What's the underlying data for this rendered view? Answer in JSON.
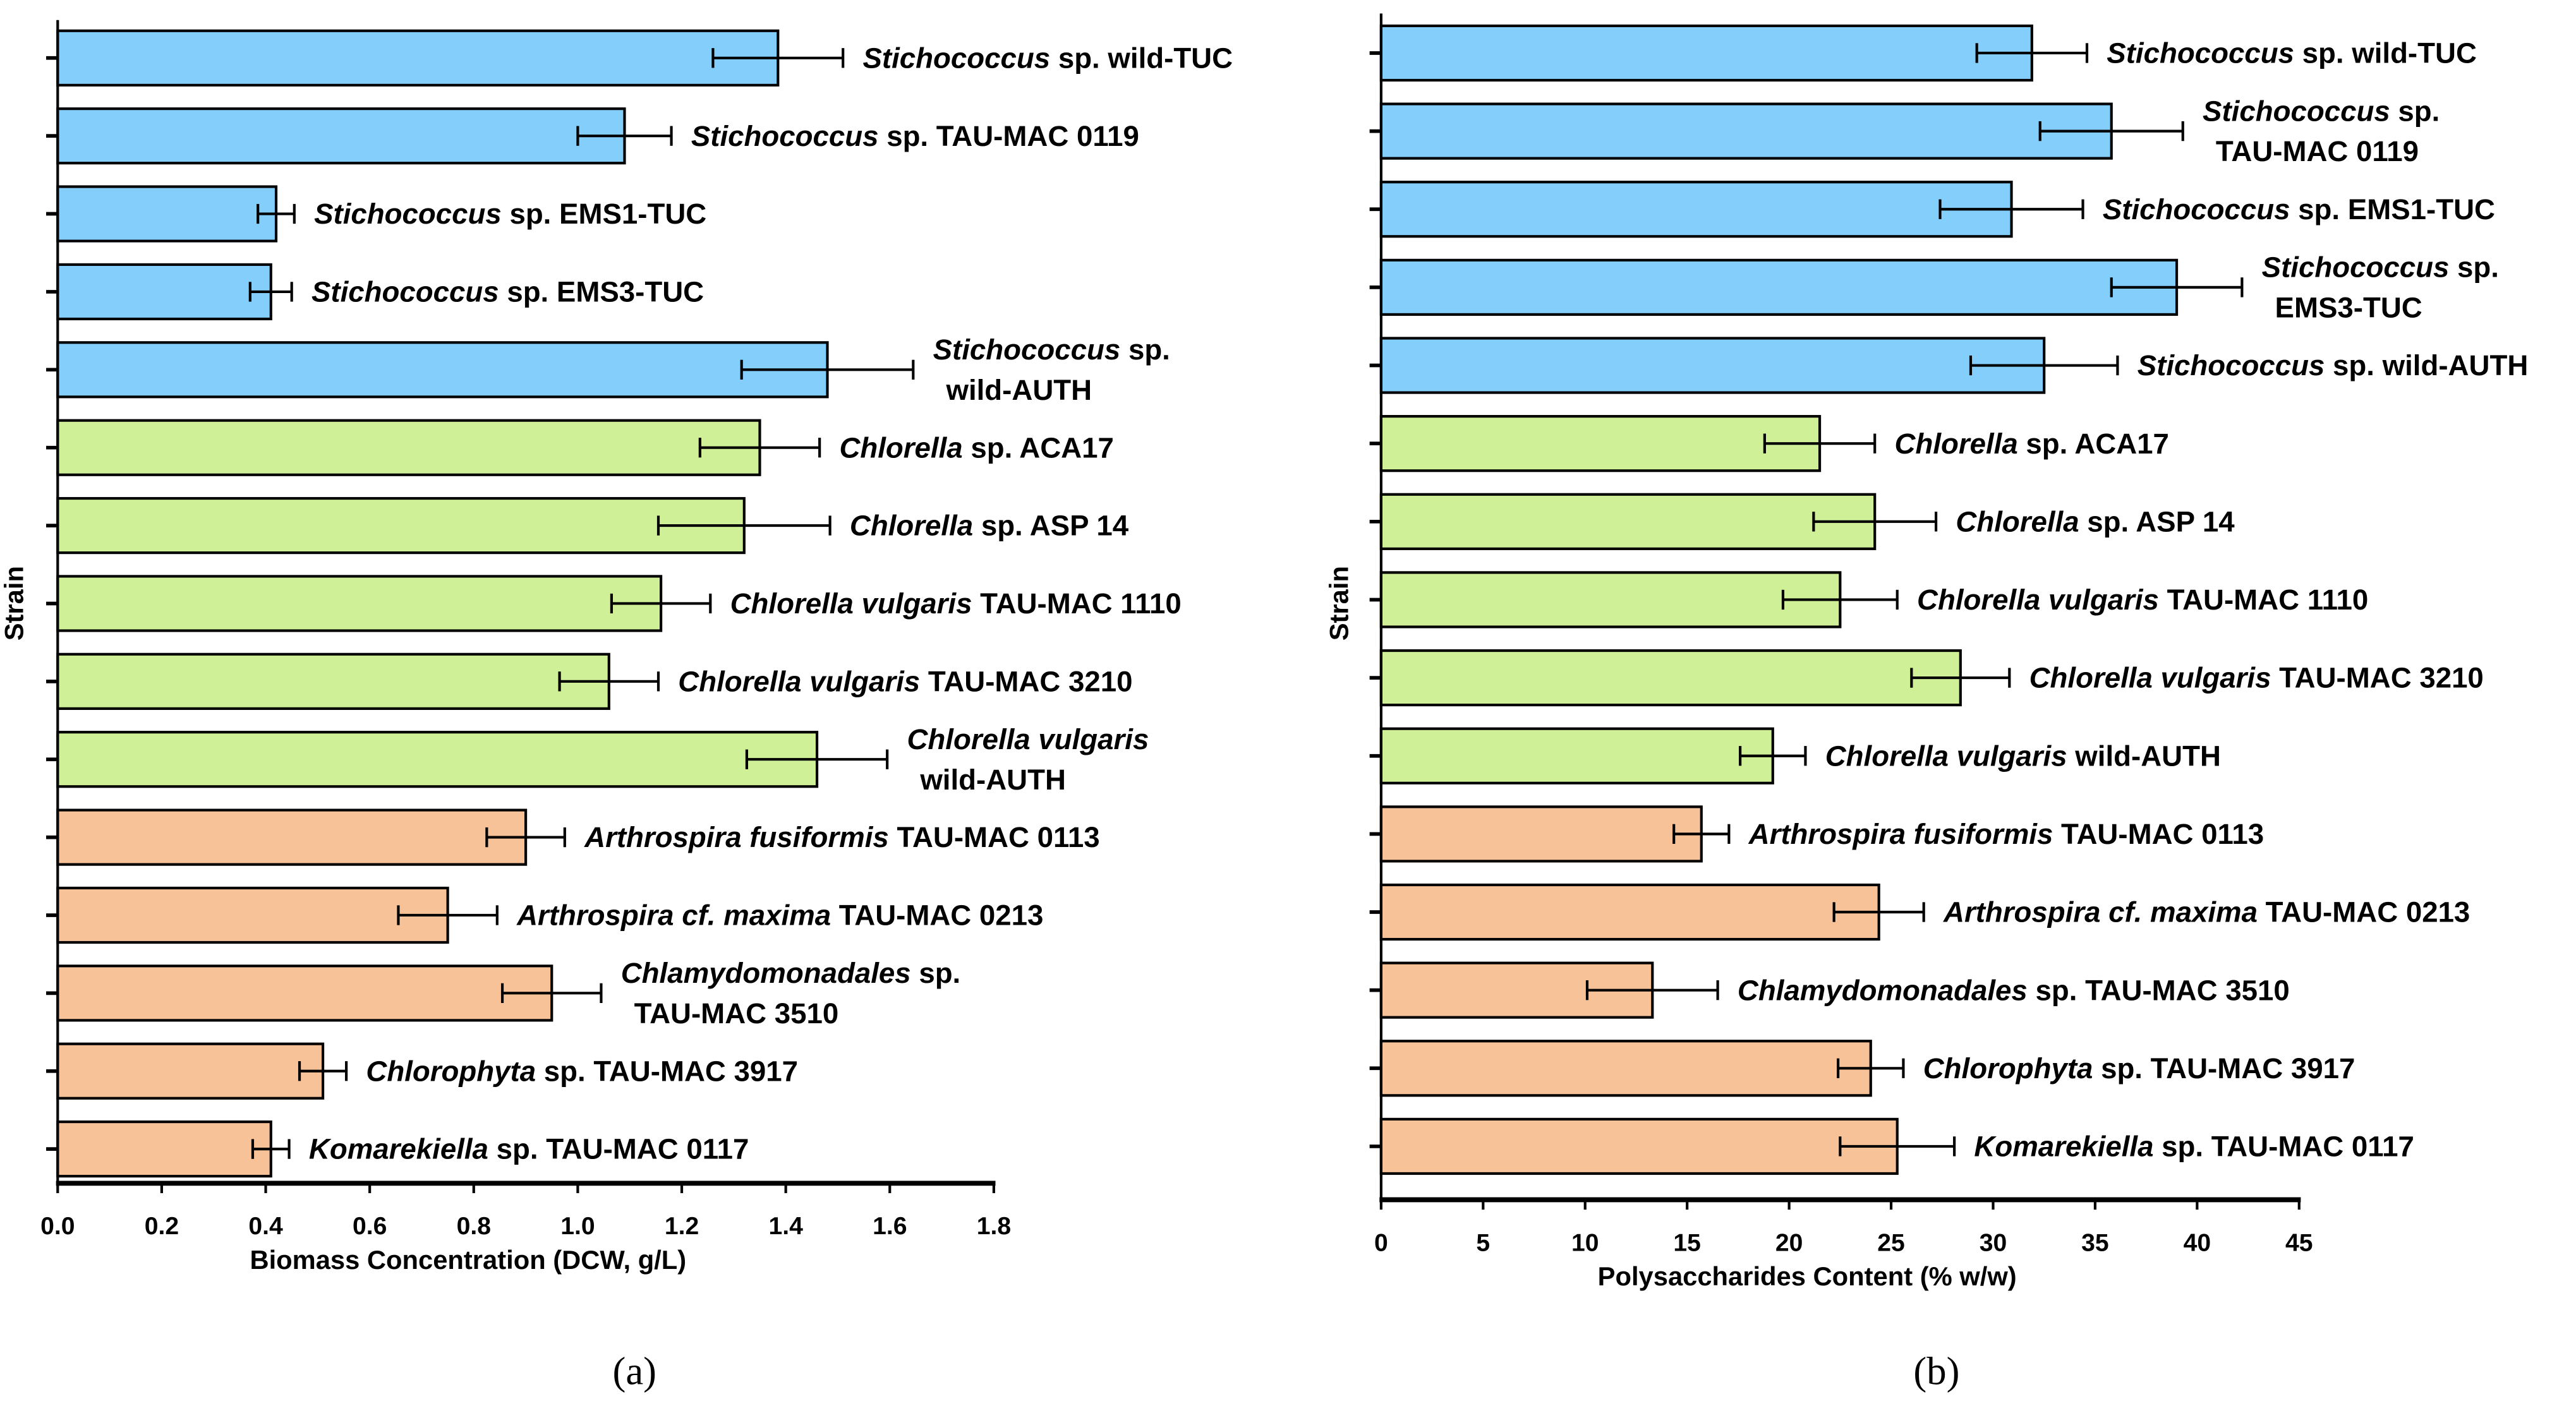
{
  "colors": {
    "Stichococcus": "#84CEFC",
    "Chlorella": "#CFF097",
    "Other": "#F7C297"
  },
  "chart_data": [
    {
      "type": "bar",
      "orientation": "horizontal",
      "panel_label": "(a)",
      "xlabel": "Biomass Concentration (DCW, g/L)",
      "ylabel": "Strain",
      "xlim": [
        0,
        1.8
      ],
      "xticks": [
        "0.0",
        "0.2",
        "0.4",
        "0.6",
        "0.8",
        "1.0",
        "1.2",
        "1.4",
        "1.6",
        "1.8"
      ],
      "bars": [
        {
          "group": "Stichococcus",
          "value": 1.385,
          "error": 0.125,
          "label_lines": [
            [
              "Stichococcus",
              " sp. wild-TUC"
            ]
          ]
        },
        {
          "group": "Stichococcus",
          "value": 1.09,
          "error": 0.09,
          "label_lines": [
            [
              "Stichococcus",
              " sp. TAU-MAC 0119"
            ]
          ]
        },
        {
          "group": "Stichococcus",
          "value": 0.42,
          "error": 0.035,
          "label_lines": [
            [
              "Stichococcus",
              " sp. EMS1-TUC"
            ]
          ]
        },
        {
          "group": "Stichococcus",
          "value": 0.41,
          "error": 0.04,
          "label_lines": [
            [
              "Stichococcus",
              " sp. EMS3-TUC"
            ]
          ]
        },
        {
          "group": "Stichococcus",
          "value": 1.48,
          "error": 0.165,
          "label_lines": [
            [
              "Stichococcus",
              " sp."
            ],
            [
              "",
              " wild-AUTH"
            ]
          ]
        },
        {
          "group": "Chlorella",
          "value": 1.35,
          "error": 0.115,
          "label_lines": [
            [
              "Chlorella",
              " sp. ACA17"
            ]
          ]
        },
        {
          "group": "Chlorella",
          "value": 1.32,
          "error": 0.165,
          "label_lines": [
            [
              "Chlorella",
              " sp. ASP 14"
            ]
          ]
        },
        {
          "group": "Chlorella",
          "value": 1.16,
          "error": 0.095,
          "label_lines": [
            [
              "Chlorella vulgaris",
              " TAU-MAC 1110"
            ]
          ]
        },
        {
          "group": "Chlorella",
          "value": 1.06,
          "error": 0.095,
          "label_lines": [
            [
              "Chlorella vulgaris",
              ""
            ],
            [
              "",
              " wild-AUTH"
            ]
          ],
          "skip": true
        },
        {
          "group": "Chlorella",
          "value": 1.46,
          "error": 0.135,
          "label_lines": [
            [
              "Chlorella vulgaris",
              ""
            ],
            [
              "",
              "wild-AUTH"
            ]
          ]
        },
        {
          "group": "Other",
          "value": 0.9,
          "error": 0.075,
          "label_lines": [
            [
              "Arthrospira fusiformis",
              " TAU-MAC 0113"
            ]
          ]
        },
        {
          "group": "Other",
          "value": 0.75,
          "error": 0.095,
          "label_lines": [
            [
              "Arthrospira cf. maxima",
              " TAU-MAC 0213"
            ]
          ]
        },
        {
          "group": "Other",
          "value": 0.95,
          "error": 0.095,
          "label_lines": [
            [
              "Chlamydomonadales",
              " sp."
            ],
            [
              "",
              "TAU-MAC 3510"
            ]
          ]
        },
        {
          "group": "Other",
          "value": 0.51,
          "error": 0.045,
          "label_lines": [
            [
              "Chlorophyta",
              " sp. TAU-MAC 3917"
            ]
          ]
        },
        {
          "group": "Other",
          "value": 0.41,
          "error": 0.035,
          "label_lines": [
            [
              "Komarekiella",
              " sp. TAU-MAC 0117"
            ]
          ]
        }
      ]
    },
    {
      "type": "bar",
      "orientation": "horizontal",
      "panel_label": "(b)",
      "xlabel": "Polysaccharides Content (% w/w)",
      "ylabel": "Strain",
      "xlim": [
        0,
        45
      ],
      "xticks": [
        "0",
        "5",
        "10",
        "15",
        "20",
        "25",
        "30",
        "35",
        "40",
        "45"
      ],
      "bars": [
        {
          "group": "Stichococcus",
          "value": 31.9,
          "error": 2.7,
          "label_lines": [
            [
              "Stichococcus",
              " sp. wild-TUC"
            ]
          ]
        },
        {
          "group": "Stichococcus",
          "value": 35.8,
          "error": 3.5,
          "label_lines": [
            [
              "Stichococcus",
              " sp."
            ],
            [
              "",
              "TAU-MAC 0119"
            ]
          ]
        },
        {
          "group": "Stichococcus",
          "value": 30.9,
          "error": 3.5,
          "label_lines": [
            [
              "Stichococcus",
              " sp. EMS1-TUC"
            ]
          ]
        },
        {
          "group": "Stichococcus",
          "value": 39.0,
          "error": 3.2,
          "label_lines": [
            [
              "Stichococcus",
              " sp."
            ],
            [
              "",
              "EMS3-TUC"
            ]
          ]
        },
        {
          "group": "Stichococcus",
          "value": 32.5,
          "error": 3.6,
          "label_lines": [
            [
              "Stichococcus",
              " sp. wild-AUTH"
            ]
          ]
        },
        {
          "group": "Chlorella",
          "value": 21.5,
          "error": 2.7,
          "label_lines": [
            [
              "Chlorella",
              " sp. ACA17"
            ]
          ]
        },
        {
          "group": "Chlorella",
          "value": 24.2,
          "error": 3.0,
          "label_lines": [
            [
              "Chlorella",
              " sp. ASP 14"
            ]
          ]
        },
        {
          "group": "Chlorella",
          "value": 22.5,
          "error": 2.8,
          "label_lines": [
            [
              "Chlorella vulgaris",
              " TAU-MAC 1110"
            ]
          ]
        },
        {
          "group": "Chlorella",
          "value": 28.4,
          "error": 2.4,
          "label_lines": [
            [
              "Chlorella vulgaris",
              " TAU-MAC 3210"
            ]
          ]
        },
        {
          "group": "Chlorella",
          "value": 19.2,
          "error": 1.6,
          "label_lines": [
            [
              "Chlorella vulgaris",
              " wild-AUTH"
            ]
          ]
        },
        {
          "group": "Other",
          "value": 15.7,
          "error": 1.35,
          "label_lines": [
            [
              "Arthrospira fusiformis",
              " TAU-MAC 0113"
            ]
          ]
        },
        {
          "group": "Other",
          "value": 24.4,
          "error": 2.2,
          "label_lines": [
            [
              "Arthrospira cf. maxima",
              " TAU-MAC 0213"
            ]
          ]
        },
        {
          "group": "Other",
          "value": 13.3,
          "error": 3.2,
          "label_lines": [
            [
              "Chlamydomonadales",
              " sp. TAU-MAC 3510"
            ]
          ]
        },
        {
          "group": "Other",
          "value": 24.0,
          "error": 1.6,
          "label_lines": [
            [
              "Chlorophyta",
              " sp. TAU-MAC 3917"
            ]
          ]
        },
        {
          "group": "Other",
          "value": 25.3,
          "error": 2.8,
          "label_lines": [
            [
              "Komarekiella",
              " sp. TAU-MAC 0117"
            ]
          ]
        }
      ]
    }
  ]
}
